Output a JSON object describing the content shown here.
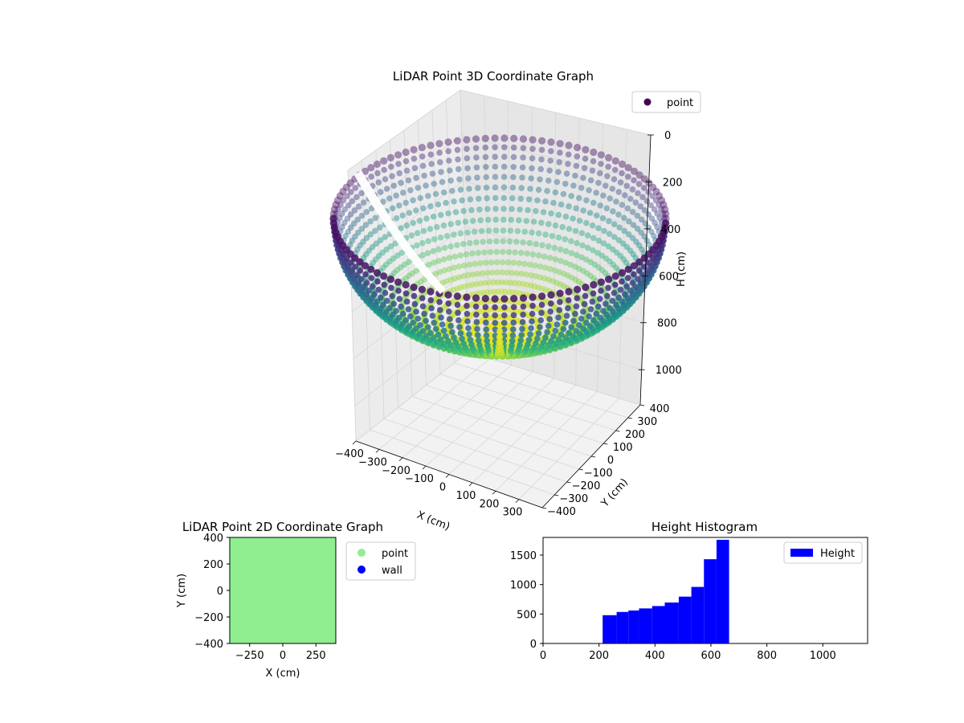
{
  "chart_data": [
    {
      "type": "scatter3d",
      "title": "LiDAR Point 3D Coordinate Graph",
      "xlabel": "X (cm)",
      "ylabel": "Y (cm)",
      "zlabel": "H (cm)",
      "xlim": [
        -400,
        400
      ],
      "ylim": [
        -400,
        400
      ],
      "zlim": [
        0,
        1150
      ],
      "z_inverted": true,
      "grid": true,
      "legend": {
        "entries": [
          "point"
        ],
        "placement": "top-right"
      },
      "colormap": "viridis",
      "x_ticks": [
        "−400",
        "−300",
        "−200",
        "−100",
        "0",
        "100",
        "200",
        "300"
      ],
      "y_ticks": [
        "−400",
        "−300",
        "−200",
        "−100",
        "0",
        "100",
        "200",
        "300",
        "400"
      ],
      "z_ticks": [
        "0",
        "200",
        "400",
        "600",
        "800",
        "1000"
      ],
      "surface": {
        "shape": "hemisphere",
        "rim_height": 200,
        "bottom_height": 650,
        "radius": 400
      }
    },
    {
      "type": "scatter",
      "title": "LiDAR Point 2D Coordinate Graph",
      "xlabel": "X (cm)",
      "ylabel": "Y (cm)",
      "xlim": [
        -400,
        400
      ],
      "ylim": [
        -400,
        400
      ],
      "x_ticks": [
        "−250",
        "0",
        "250"
      ],
      "y_ticks": [
        "400",
        "200",
        "0",
        "−200",
        "−400"
      ],
      "legend": {
        "entries": [
          "point",
          "wall"
        ],
        "placement": "outside-right"
      },
      "colors": {
        "point": "#90ee90",
        "wall": "#0000ff"
      }
    },
    {
      "type": "bar",
      "title": "Height Histogram",
      "xlim": [
        0,
        1160
      ],
      "ylim": [
        0,
        1800
      ],
      "x_ticks": [
        "0",
        "200",
        "400",
        "600",
        "800",
        "1000"
      ],
      "y_ticks": [
        "0",
        "500",
        "1000",
        "1500"
      ],
      "legend": {
        "entries": [
          "Height"
        ],
        "placement": "top-right"
      },
      "color": "#0000ff",
      "bins": [
        {
          "x0": 213,
          "x1": 263,
          "value": 480
        },
        {
          "x0": 263,
          "x1": 305,
          "value": 535
        },
        {
          "x0": 305,
          "x1": 343,
          "value": 560
        },
        {
          "x0": 343,
          "x1": 390,
          "value": 595
        },
        {
          "x0": 390,
          "x1": 435,
          "value": 635
        },
        {
          "x0": 435,
          "x1": 485,
          "value": 695
        },
        {
          "x0": 485,
          "x1": 530,
          "value": 795
        },
        {
          "x0": 530,
          "x1": 575,
          "value": 960
        },
        {
          "x0": 575,
          "x1": 620,
          "value": 1430
        },
        {
          "x0": 620,
          "x1": 665,
          "value": 1760
        }
      ]
    }
  ]
}
